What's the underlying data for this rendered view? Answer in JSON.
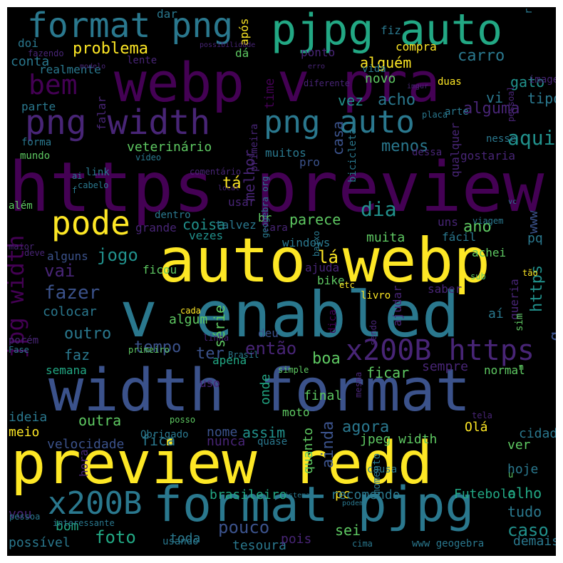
{
  "background": "#000000",
  "palette": {
    "p": "#440154",
    "i": "#482576",
    "b": "#3b528b",
    "t": "#2a788e",
    "c": "#21918c",
    "g": "#22a884",
    "l": "#5ec962",
    "y": "#fde725"
  },
  "words": [
    {
      "t": "https preview",
      "c": "p"
    },
    {
      "t": "width format",
      "c": "b"
    },
    {
      "t": "preview redd",
      "c": "y"
    },
    {
      "t": "v enabled",
      "c": "t"
    },
    {
      "t": "auto webp",
      "c": "y"
    },
    {
      "t": "webp v pra",
      "c": "p"
    },
    {
      "t": "format pjpg",
      "c": "t"
    },
    {
      "t": "pjpg auto",
      "c": "g"
    },
    {
      "t": "png width",
      "c": "i"
    },
    {
      "t": "png auto",
      "c": "t"
    },
    {
      "t": "format png",
      "c": "t"
    },
    {
      "t": "x200B https",
      "c": "i"
    },
    {
      "t": "x200B",
      "c": "t"
    },
    {
      "t": "bem",
      "c": "p"
    },
    {
      "t": "pode",
      "c": "y"
    },
    {
      "t": "jpg width",
      "c": "p"
    },
    {
      "t": "problema",
      "c": "y"
    },
    {
      "t": "veterinário",
      "c": "l"
    },
    {
      "t": "aqui",
      "c": "c"
    },
    {
      "t": "dia",
      "c": "c"
    },
    {
      "t": "fazer",
      "c": "b"
    },
    {
      "t": "jogo",
      "c": "c"
    },
    {
      "t": "foto",
      "c": "g"
    },
    {
      "t": "caso",
      "c": "c"
    },
    {
      "t": "pouco",
      "c": "b"
    },
    {
      "t": "então",
      "c": "i"
    },
    {
      "t": "tempo",
      "c": "b"
    },
    {
      "t": "outro",
      "c": "t"
    },
    {
      "t": "vai",
      "c": "i"
    },
    {
      "t": "tá",
      "c": "y"
    },
    {
      "t": "lá",
      "c": "y"
    },
    {
      "t": "ter",
      "c": "b"
    },
    {
      "t": "faz",
      "c": "t"
    },
    {
      "t": "boa",
      "c": "l"
    },
    {
      "t": "ano",
      "c": "l"
    },
    {
      "t": "ainda",
      "c": "b"
    },
    {
      "t": "agora",
      "c": "t"
    },
    {
      "t": "carro",
      "c": "t"
    },
    {
      "t": "alguma",
      "c": "i"
    },
    {
      "t": "acho",
      "c": "t"
    },
    {
      "t": "alguém",
      "c": "y"
    },
    {
      "t": "gato",
      "c": "c"
    },
    {
      "t": "casa",
      "c": "b"
    },
    {
      "t": "menos",
      "c": "t"
    },
    {
      "t": "melhor",
      "c": "i"
    },
    {
      "t": "time",
      "c": "p"
    },
    {
      "t": "tipo",
      "c": "t"
    },
    {
      "t": "vez",
      "c": "c"
    },
    {
      "t": "vi",
      "c": "t"
    },
    {
      "t": "novo",
      "c": "l"
    },
    {
      "t": "parece",
      "c": "l"
    },
    {
      "t": "coisa",
      "c": "c"
    },
    {
      "t": "muita",
      "c": "l"
    },
    {
      "t": "fácil",
      "c": "t"
    },
    {
      "t": "uns",
      "c": "i"
    },
    {
      "t": "pq",
      "c": "t"
    },
    {
      "t": "www",
      "c": "b"
    },
    {
      "t": "achei",
      "c": "l"
    },
    {
      "t": "https",
      "c": "c"
    },
    {
      "t": "q",
      "c": "b"
    },
    {
      "t": "ficar",
      "c": "l"
    },
    {
      "t": "sempre",
      "c": "i"
    },
    {
      "t": "final",
      "c": "l"
    },
    {
      "t": "onde",
      "c": "g"
    },
    {
      "t": "semana",
      "c": "g"
    },
    {
      "t": "outra",
      "c": "l"
    },
    {
      "t": "fica",
      "c": "t"
    },
    {
      "t": "assim",
      "c": "c"
    },
    {
      "t": "nome",
      "c": "b"
    },
    {
      "t": "nunca",
      "c": "i"
    },
    {
      "t": "meio",
      "c": "y"
    },
    {
      "t": "velocidade",
      "c": "b"
    },
    {
      "t": "moto",
      "c": "l"
    },
    {
      "t": "ideia",
      "c": "t"
    },
    {
      "t": "Olá",
      "c": "y"
    },
    {
      "t": "jpeg width",
      "c": "l"
    },
    {
      "t": "ver",
      "c": "l"
    },
    {
      "t": "cidade",
      "c": "t"
    },
    {
      "t": "hoje",
      "c": "t"
    },
    {
      "t": "olho",
      "c": "g"
    },
    {
      "t": "tudo",
      "c": "t"
    },
    {
      "t": "sei",
      "c": "l"
    },
    {
      "t": "demais",
      "c": "t"
    },
    {
      "t": "vou",
      "c": "i"
    },
    {
      "t": "bom",
      "c": "g"
    },
    {
      "t": "possível",
      "c": "t"
    },
    {
      "t": "tesoura",
      "c": "t"
    },
    {
      "t": "toda",
      "c": "t"
    },
    {
      "t": "pois",
      "c": "i"
    },
    {
      "t": "pc",
      "c": "y"
    },
    {
      "t": "recomendo",
      "c": "t"
    },
    {
      "t": "brasileiro",
      "c": "g"
    },
    {
      "t": "Futebola",
      "c": "g"
    },
    {
      "t": "quanto",
      "c": "l"
    },
    {
      "t": "hora",
      "c": "i"
    },
    {
      "t": "normal",
      "c": "l"
    },
    {
      "t": "série",
      "c": "l"
    },
    {
      "t": "algum",
      "c": "l"
    },
    {
      "t": "ajudar",
      "c": "i"
    },
    {
      "t": "queria",
      "c": "i"
    },
    {
      "t": "saber",
      "c": "i"
    },
    {
      "t": "aí",
      "c": "t"
    },
    {
      "t": "colocar",
      "c": "t"
    },
    {
      "t": "porém",
      "c": "i"
    },
    {
      "t": "ficou",
      "c": "l"
    },
    {
      "t": "alguns",
      "c": "b"
    },
    {
      "t": "vezes",
      "c": "c"
    },
    {
      "t": "talvez",
      "c": "t"
    },
    {
      "t": "grande",
      "c": "i"
    },
    {
      "t": "usar",
      "c": "i"
    },
    {
      "t": "br",
      "c": "l"
    },
    {
      "t": "cara",
      "c": "i"
    },
    {
      "t": "windows",
      "c": "t"
    },
    {
      "t": "ajuda",
      "c": "i"
    },
    {
      "t": "bike",
      "c": "l"
    },
    {
      "t": "apena",
      "c": "g"
    },
    {
      "t": "uso",
      "c": "i"
    },
    {
      "t": "deu",
      "c": "b"
    },
    {
      "t": "pro",
      "c": "b"
    },
    {
      "t": "muitos",
      "c": "t"
    },
    {
      "t": "gostaria",
      "c": "i"
    },
    {
      "t": "qualquer",
      "c": "i"
    },
    {
      "t": "realmente",
      "c": "t"
    },
    {
      "t": "parte",
      "c": "t"
    },
    {
      "t": "doi",
      "c": "t"
    },
    {
      "t": "dar",
      "c": "t"
    },
    {
      "t": "fiz",
      "c": "t"
    },
    {
      "t": "dá",
      "c": "l"
    },
    {
      "t": "ponto",
      "c": "i"
    },
    {
      "t": "após",
      "c": "y"
    },
    {
      "t": "compra",
      "c": "y"
    },
    {
      "t": "vida",
      "c": "t"
    },
    {
      "t": "duas",
      "c": "y"
    },
    {
      "t": "imagem",
      "c": "i"
    },
    {
      "t": "r",
      "c": "t"
    },
    {
      "t": "conta",
      "c": "t"
    },
    {
      "t": "fazendo",
      "c": "i"
    },
    {
      "t": "modelo",
      "c": "i"
    },
    {
      "t": "lente",
      "c": "i"
    },
    {
      "t": "possibilidade",
      "c": "i"
    },
    {
      "t": "erro",
      "c": "i"
    },
    {
      "t": "diferente",
      "c": "i"
    },
    {
      "t": "imgur",
      "c": "i"
    },
    {
      "t": "arte",
      "c": "t"
    },
    {
      "t": "placa",
      "c": "t"
    },
    {
      "t": "pessoal",
      "c": "i"
    },
    {
      "t": "falar",
      "c": "i"
    },
    {
      "t": "primeira",
      "c": "i"
    },
    {
      "t": "bicicleta",
      "c": "t"
    },
    {
      "t": "nesse",
      "c": "t"
    },
    {
      "t": "forma",
      "c": "t"
    },
    {
      "t": "mundo",
      "c": "l"
    },
    {
      "t": "link",
      "c": "t"
    },
    {
      "t": "vídeo",
      "c": "t"
    },
    {
      "t": "comentário",
      "c": "i"
    },
    {
      "t": "dessa",
      "c": "i"
    },
    {
      "t": "ai",
      "c": "t"
    },
    {
      "t": "cabelo",
      "c": "t"
    },
    {
      "t": "f",
      "c": "t"
    },
    {
      "t": "local",
      "c": "i"
    },
    {
      "t": "geogebra org",
      "c": "t"
    },
    {
      "t": "além",
      "c": "l"
    },
    {
      "t": "dentro",
      "c": "t"
    },
    {
      "t": "viagem",
      "c": "t"
    },
    {
      "t": "vc",
      "c": "t"
    },
    {
      "t": "maior",
      "c": "i"
    },
    {
      "t": "deve",
      "c": "i"
    },
    {
      "t": "baixo",
      "c": "t"
    },
    {
      "t": "etc",
      "c": "y"
    },
    {
      "t": "tão",
      "c": "y"
    },
    {
      "t": "sub",
      "c": "l"
    },
    {
      "t": "livro",
      "c": "y"
    },
    {
      "t": "sim",
      "c": "l"
    },
    {
      "t": "cada",
      "c": "y"
    },
    {
      "t": "linha",
      "c": "i"
    },
    {
      "t": "dica",
      "c": "p"
    },
    {
      "t": "sendo",
      "c": "i"
    },
    {
      "t": "Fase",
      "c": "t"
    },
    {
      "t": "primeiro",
      "c": "l"
    },
    {
      "t": "Brasil",
      "c": "t"
    },
    {
      "t": "simple",
      "c": "l"
    },
    {
      "t": "n",
      "c": "l"
    },
    {
      "t": "mesma",
      "c": "i"
    },
    {
      "t": "posso",
      "c": "l"
    },
    {
      "t": "Obrigado",
      "c": "t"
    },
    {
      "t": "quase",
      "c": "t"
    },
    {
      "t": "momento",
      "c": "t"
    },
    {
      "t": "tela",
      "c": "i"
    },
    {
      "t": "causa",
      "c": "t"
    },
    {
      "t": "sistema",
      "c": "t"
    },
    {
      "t": "podem",
      "c": "t"
    },
    {
      "t": "u",
      "c": "l"
    },
    {
      "t": "pessoa",
      "c": "t"
    },
    {
      "t": "interessante",
      "c": "t"
    },
    {
      "t": "usando",
      "c": "t"
    },
    {
      "t": "www geogebra",
      "c": "t"
    },
    {
      "t": "cima",
      "c": "t"
    }
  ]
}
